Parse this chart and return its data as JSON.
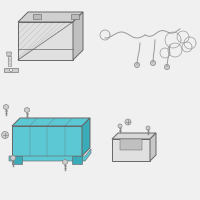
{
  "bg_color": "#f0f0f0",
  "outline_color": "#666666",
  "highlight_color": "#5bc8d4",
  "highlight_dark": "#3aabb8",
  "screw_color": "#888888",
  "wire_color": "#999999",
  "battery_face": "#e0e0e0",
  "battery_top": "#d0d0d0",
  "battery_side": "#c0c0c0",
  "figsize": [
    2.0,
    2.0
  ],
  "dpi": 100
}
